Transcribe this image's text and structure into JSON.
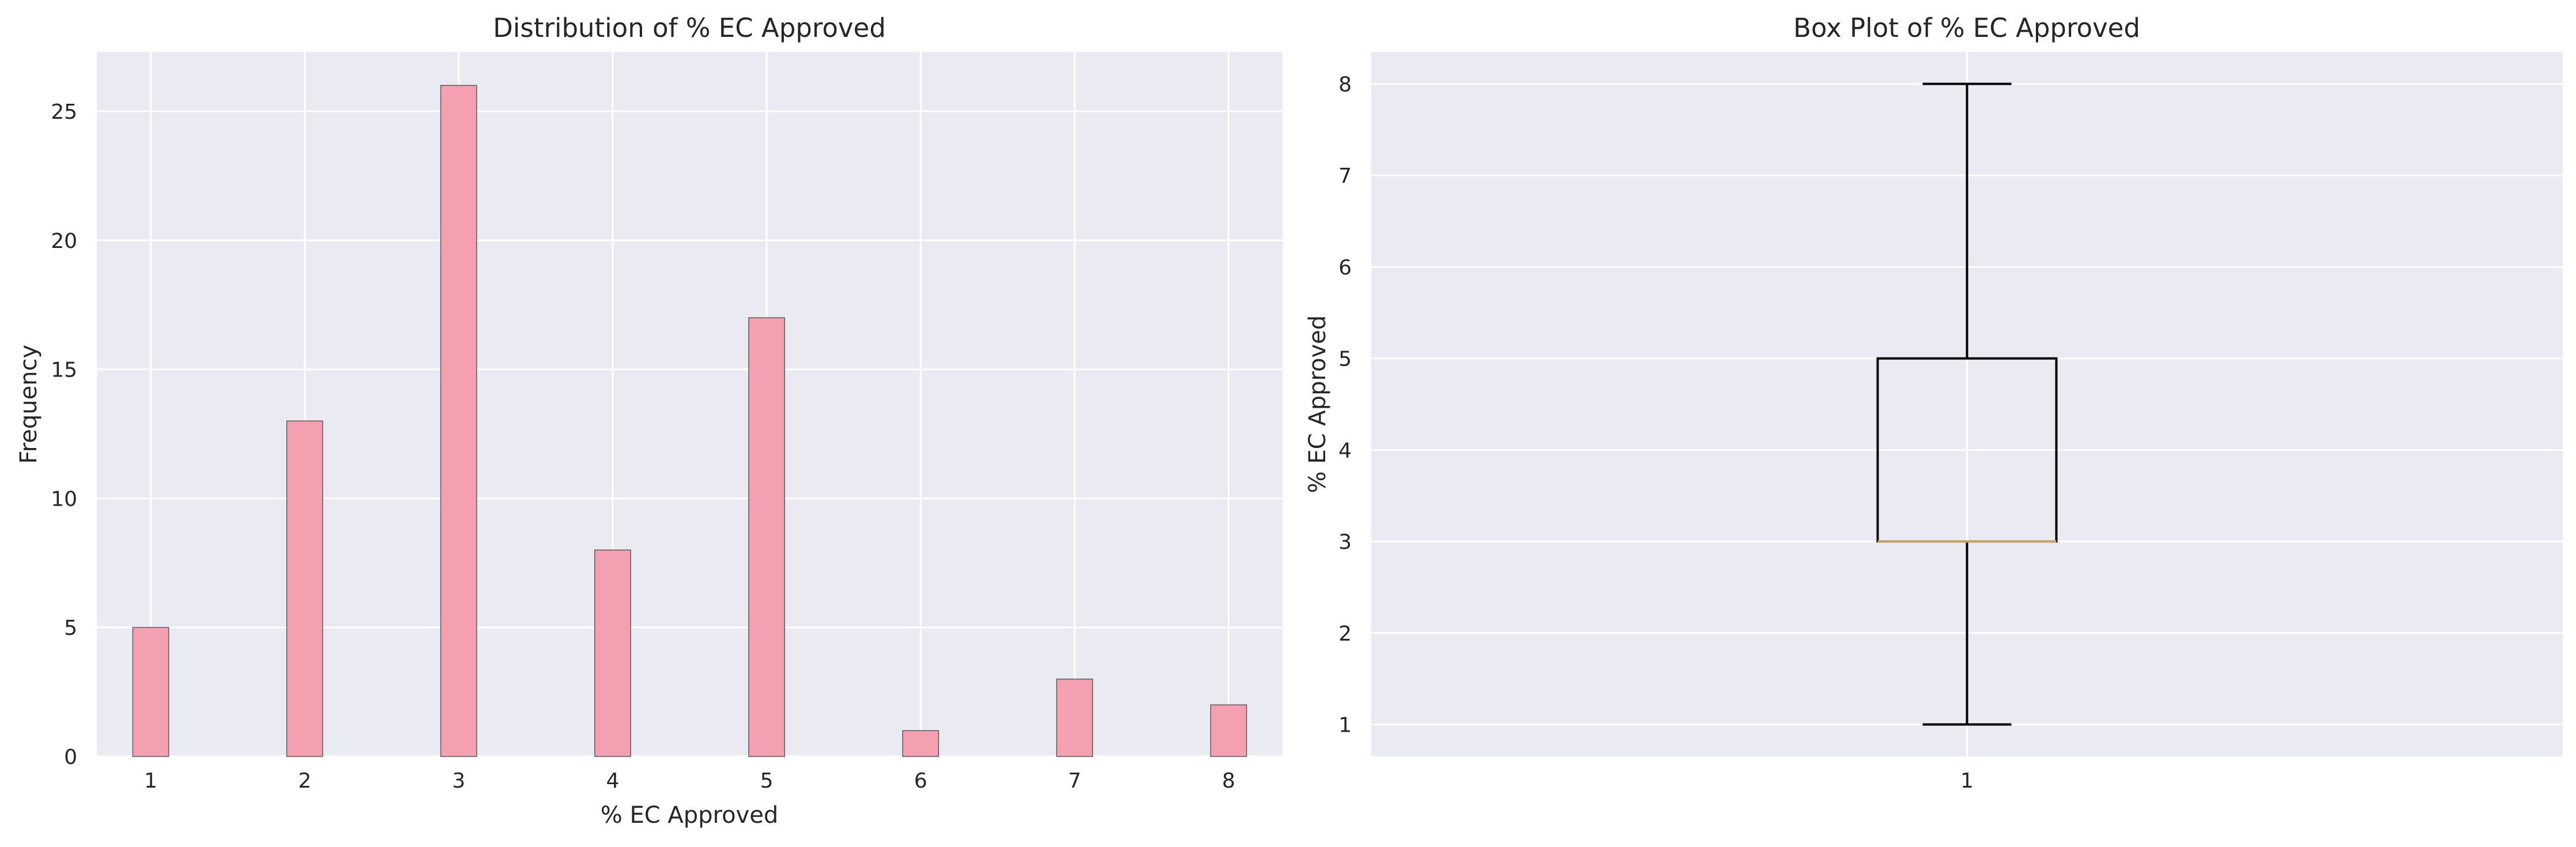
{
  "chart_data": [
    {
      "type": "bar",
      "subtype": "histogram",
      "title": "Distribution of % EC Approved",
      "xlabel": "% EC Approved",
      "ylabel": "Frequency",
      "x": [
        1,
        2,
        3,
        4,
        5,
        6,
        7,
        8
      ],
      "values": [
        5,
        13,
        26,
        8,
        17,
        1,
        3,
        2
      ],
      "x_ticks": [
        "1",
        "2",
        "3",
        "4",
        "5",
        "6",
        "7",
        "8"
      ],
      "y_ticks": [
        "0",
        "5",
        "10",
        "15",
        "20",
        "25"
      ],
      "xlim": [
        0.65,
        8.35
      ],
      "ylim": [
        0,
        27.3
      ],
      "bar_color": "#f4a0b1",
      "edge_color": "#5a5a5a",
      "grid": true
    },
    {
      "type": "box",
      "title": "Box Plot of % EC Approved",
      "xlabel": "",
      "ylabel": "% EC Approved",
      "x_ticks": [
        "1"
      ],
      "y_ticks": [
        "1",
        "2",
        "3",
        "4",
        "5",
        "6",
        "7",
        "8"
      ],
      "ylim": [
        0.65,
        8.35
      ],
      "box": {
        "whisker_low": 1,
        "q1": 3,
        "median": 3,
        "q3": 5,
        "whisker_high": 8
      },
      "median_color": "#c8a15a",
      "line_color": "#000000",
      "grid": true
    }
  ],
  "colors": {
    "axes_background": "#eaeaf2",
    "grid": "#ffffff",
    "text": "#262626"
  }
}
